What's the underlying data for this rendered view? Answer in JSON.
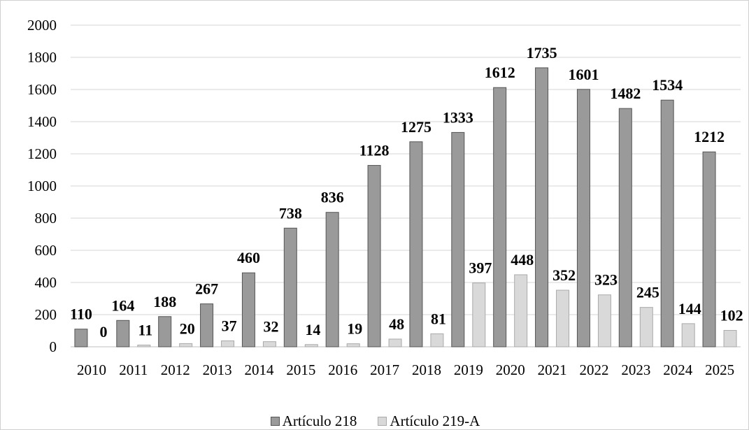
{
  "chart_data": {
    "type": "bar",
    "title": "",
    "categories": [
      "2010",
      "2011",
      "2012",
      "2013",
      "2014",
      "2015",
      "2016",
      "2017",
      "2018",
      "2019",
      "2020",
      "2021",
      "2022",
      "2023",
      "2024",
      "2025"
    ],
    "series": [
      {
        "name": "Artículo 218",
        "values": [
          110,
          164,
          188,
          267,
          460,
          738,
          836,
          1128,
          1275,
          1333,
          1612,
          1735,
          1601,
          1482,
          1534,
          1212
        ],
        "color": "#9a9a9a"
      },
      {
        "name": "Artículo 219-A",
        "values": [
          0,
          11,
          20,
          37,
          32,
          14,
          19,
          48,
          81,
          397,
          448,
          352,
          323,
          245,
          144,
          102
        ],
        "color": "#d9d9d9"
      }
    ],
    "ylim": [
      0,
      2000
    ],
    "yticks": [
      "0",
      "200",
      "400",
      "600",
      "800",
      "1000",
      "1200",
      "1400",
      "1600",
      "1800",
      "2000"
    ],
    "grid": true,
    "legend_position": "bottom",
    "data_labels": true
  }
}
